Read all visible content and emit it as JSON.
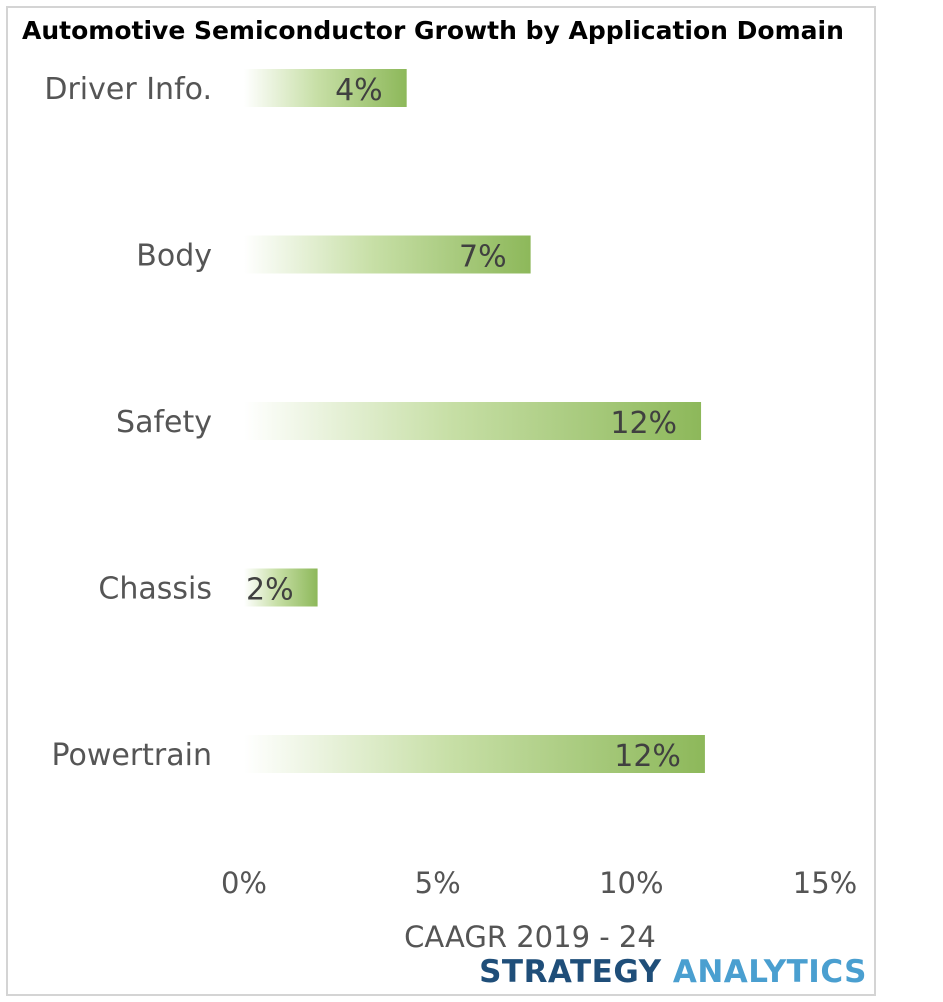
{
  "chart_data": {
    "type": "bar",
    "orientation": "horizontal",
    "title": "Automotive Semiconductor Growth by Application Domain",
    "categories": [
      "Driver Info.",
      "Body",
      "Safety",
      "Chassis",
      "Powertrain"
    ],
    "values": [
      4.2,
      7.4,
      11.8,
      1.9,
      11.9
    ],
    "value_labels": [
      "4%",
      "7%",
      "12%",
      "2%",
      "12%"
    ],
    "xlabel": "CAAGR 2019 - 24",
    "ylabel": "",
    "xlim": [
      0,
      15
    ],
    "xticks": [
      0,
      5,
      10,
      15
    ],
    "xtick_labels": [
      "0%",
      "5%",
      "10%",
      "15%"
    ],
    "grid": false,
    "bar_color": "#8db85a"
  },
  "brand": {
    "part1": "STRATEGY",
    "part2": "ANALYTICS"
  }
}
